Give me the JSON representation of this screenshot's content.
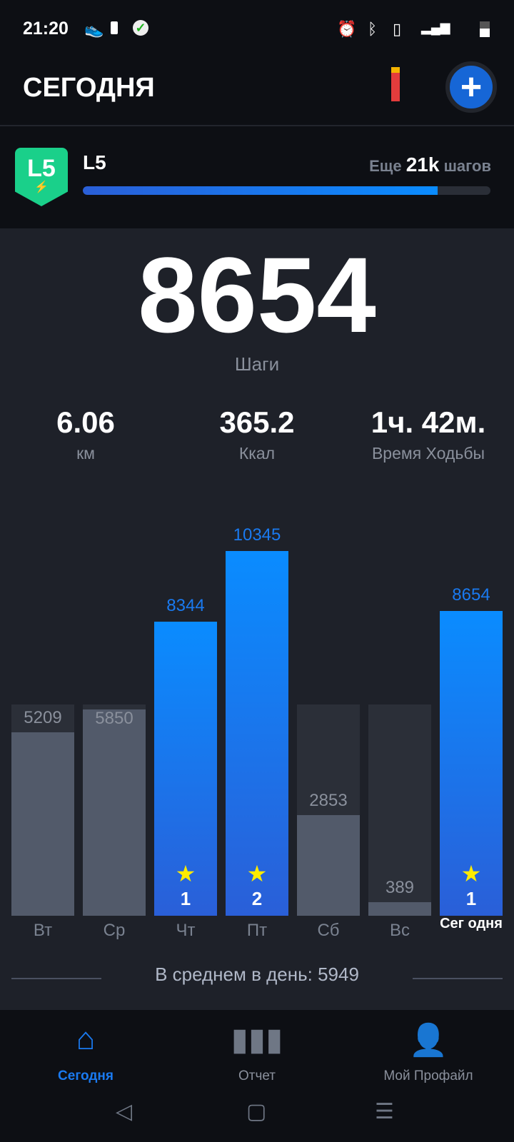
{
  "status": {
    "time": "21:20",
    "icons": [
      "steps-notification-icon",
      "battery-small-icon",
      "check-icon",
      "alarm-icon",
      "bluetooth-icon",
      "vibrate-icon",
      "signal-icon",
      "lte-signal-icon",
      "battery-icon"
    ]
  },
  "header": {
    "title": "СЕГОДНЯ",
    "add_label": "+"
  },
  "level": {
    "badge": "L5",
    "name": "L5",
    "remaining_prefix": "Еще",
    "remaining_value": "21k",
    "remaining_suffix": "шагов",
    "progress": 0.87
  },
  "today": {
    "steps": "8654",
    "steps_label": "Шаги"
  },
  "stats": [
    {
      "value": "6.06",
      "label": "км"
    },
    {
      "value": "365.2",
      "label": "Ккал"
    },
    {
      "value": "1ч. 42м.",
      "label": "Время Ходьбы"
    }
  ],
  "chart_data": {
    "type": "bar",
    "goal": 6000,
    "categories": [
      "Вт",
      "Ср",
      "Чт",
      "Пт",
      "Сб",
      "Вс",
      "Сег одня"
    ],
    "values": [
      5209,
      5850,
      8344,
      10345,
      2853,
      389,
      8654
    ],
    "stars": [
      null,
      null,
      1,
      2,
      null,
      null,
      1
    ],
    "colors": {
      "below_goal": "#525a6a",
      "above_goal": "#1a7af0",
      "track": "#2b2f38"
    }
  },
  "average": {
    "label": "В среднем в день: 5949"
  },
  "nav": {
    "tabs": [
      {
        "label": "Сегодня",
        "icon": "home-icon",
        "active": true
      },
      {
        "label": "Отчет",
        "icon": "bar-chart-icon"
      },
      {
        "label": "Мой Профайл",
        "icon": "profile-icon"
      }
    ]
  }
}
